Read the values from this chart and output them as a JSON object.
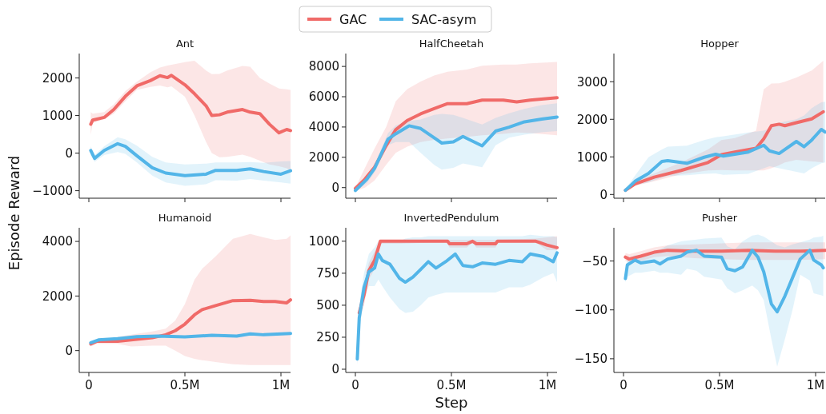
{
  "chart_data": [
    {
      "type": "line",
      "title": "Ant",
      "legend": "top",
      "tick_labels": "y",
      "xlim": [
        -50000,
        1050000
      ],
      "xticks": [
        {
          "value": 0,
          "label": null
        },
        {
          "value": 500000,
          "label": null
        },
        {
          "value": 1000000,
          "label": null
        }
      ],
      "ylim": [
        -1200,
        2650
      ],
      "yticks": [
        -1000,
        0,
        1000,
        2000
      ],
      "series": [
        {
          "name": "GAC",
          "color": "#f06a68",
          "x": [
            10000,
            20000,
            80000,
            130000,
            190000,
            250000,
            320000,
            370000,
            410000,
            430000,
            500000,
            550000,
            610000,
            640000,
            680000,
            720000,
            800000,
            840000,
            890000,
            940000,
            990000,
            1030000,
            1050000
          ],
          "values": [
            770,
            880,
            950,
            1160,
            1510,
            1790,
            1930,
            2060,
            2010,
            2070,
            1820,
            1580,
            1260,
            1000,
            1020,
            1090,
            1160,
            1090,
            1050,
            770,
            540,
            630,
            600
          ],
          "upper": [
            1090,
            1050,
            1090,
            1300,
            1650,
            1900,
            2150,
            2280,
            2330,
            2350,
            2420,
            2460,
            2200,
            2100,
            2110,
            2200,
            2320,
            2300,
            2000,
            1850,
            1720,
            1700,
            1680
          ],
          "lower": [
            490,
            800,
            900,
            1050,
            1380,
            1680,
            1760,
            1800,
            1750,
            1780,
            1500,
            1000,
            300,
            0,
            -110,
            -100,
            -40,
            -100,
            -200,
            -300,
            -350,
            -400,
            -460
          ]
        },
        {
          "name": "SAC-asym",
          "color": "#52b5e8",
          "x": [
            10000,
            30000,
            80000,
            150000,
            190000,
            250000,
            330000,
            400000,
            500000,
            610000,
            660000,
            770000,
            840000,
            910000,
            1000000,
            1050000
          ],
          "values": [
            70,
            -140,
            70,
            250,
            180,
            -70,
            -390,
            -530,
            -600,
            -560,
            -460,
            -460,
            -420,
            -490,
            -560,
            -470
          ],
          "upper": [
            180,
            -50,
            180,
            420,
            370,
            200,
            -100,
            -250,
            -300,
            -280,
            -250,
            -250,
            -240,
            -260,
            -220,
            -210
          ],
          "lower": [
            -50,
            -230,
            -50,
            30,
            -20,
            -250,
            -600,
            -780,
            -870,
            -830,
            -720,
            -730,
            -690,
            -730,
            -780,
            -810
          ]
        }
      ]
    },
    {
      "type": "line",
      "title": "HalfCheetah",
      "tick_labels": "y",
      "xlim": [
        -50000,
        1050000
      ],
      "xticks": [
        {
          "value": 0,
          "label": null
        },
        {
          "value": 500000,
          "label": null
        },
        {
          "value": 1000000,
          "label": null
        }
      ],
      "ylim": [
        -700,
        8850
      ],
      "yticks": [
        0,
        2000,
        4000,
        6000,
        8000
      ],
      "series": [
        {
          "color": "#f06a68",
          "x": [
            0,
            50000,
            100000,
            160000,
            210000,
            270000,
            340000,
            410000,
            480000,
            580000,
            660000,
            770000,
            840000,
            910000,
            1050000
          ],
          "values": [
            -50,
            560,
            1350,
            2760,
            3820,
            4430,
            4870,
            5220,
            5540,
            5540,
            5780,
            5780,
            5660,
            5780,
            5930
          ],
          "upper": [
            0,
            1300,
            2580,
            4000,
            5700,
            6500,
            7000,
            7400,
            7650,
            7800,
            8050,
            8120,
            8120,
            8200,
            8300
          ],
          "lower": [
            -230,
            0,
            470,
            1500,
            2300,
            2700,
            3000,
            3150,
            3250,
            3350,
            3460,
            3550,
            3640,
            3600,
            3460
          ]
        },
        {
          "color": "#52b5e8",
          "x": [
            0,
            60000,
            100000,
            170000,
            210000,
            280000,
            340000,
            410000,
            450000,
            510000,
            560000,
            660000,
            730000,
            800000,
            880000,
            970000,
            1050000
          ],
          "values": [
            -190,
            560,
            1270,
            3200,
            3550,
            4080,
            3900,
            3290,
            2940,
            3020,
            3380,
            2760,
            3730,
            3990,
            4340,
            4520,
            4660
          ],
          "upper": [
            -50,
            800,
            1500,
            3600,
            4100,
            4400,
            4500,
            4800,
            4870,
            4800,
            4600,
            4170,
            4600,
            4900,
            5200,
            5450,
            5570
          ],
          "lower": [
            -300,
            300,
            1000,
            2800,
            3000,
            3000,
            2300,
            1500,
            1180,
            1300,
            1600,
            1350,
            2800,
            3300,
            3500,
            3650,
            3730
          ]
        }
      ]
    },
    {
      "type": "line",
      "title": "Hopper",
      "tick_labels": "y",
      "xlim": [
        -50000,
        1050000
      ],
      "xticks": [
        {
          "value": 0,
          "label": null
        },
        {
          "value": 500000,
          "label": null
        },
        {
          "value": 1000000,
          "label": null
        }
      ],
      "ylim": [
        -100,
        3750
      ],
      "yticks": [
        0,
        1000,
        2000,
        3000
      ],
      "series": [
        {
          "color": "#f06a68",
          "x": [
            10000,
            60000,
            160000,
            300000,
            440000,
            510000,
            580000,
            690000,
            730000,
            770000,
            810000,
            840000,
            900000,
            980000,
            1040000
          ],
          "values": [
            110,
            280,
            460,
            640,
            850,
            1060,
            1130,
            1230,
            1480,
            1830,
            1870,
            1830,
            1910,
            2010,
            2200
          ],
          "upper": [
            140,
            350,
            560,
            850,
            1200,
            1450,
            1500,
            1700,
            2800,
            2950,
            2960,
            3000,
            3110,
            3300,
            3560
          ],
          "lower": [
            70,
            230,
            350,
            540,
            640,
            650,
            640,
            640,
            640,
            700,
            780,
            850,
            920,
            880,
            850
          ]
        },
        {
          "color": "#52b5e8",
          "x": [
            10000,
            60000,
            130000,
            200000,
            230000,
            330000,
            420000,
            480000,
            520000,
            650000,
            730000,
            760000,
            810000,
            900000,
            940000,
            980000,
            1030000,
            1050000
          ],
          "values": [
            110,
            350,
            560,
            880,
            900,
            830,
            990,
            1070,
            1020,
            1130,
            1310,
            1160,
            1090,
            1410,
            1270,
            1450,
            1730,
            1660
          ],
          "upper": [
            140,
            500,
            990,
            1200,
            1270,
            1300,
            1450,
            1520,
            1550,
            1650,
            1700,
            1750,
            1910,
            2000,
            2100,
            2300,
            2450,
            2470
          ],
          "lower": [
            70,
            250,
            320,
            450,
            490,
            510,
            550,
            560,
            520,
            550,
            700,
            750,
            700,
            600,
            560,
            700,
            830,
            850
          ]
        }
      ]
    },
    {
      "type": "line",
      "title": "Humanoid",
      "ylabel": "Episode Reward",
      "xlim": [
        -50000,
        1050000
      ],
      "xticks": [
        {
          "value": 0,
          "label": "0"
        },
        {
          "value": 500000,
          "label": "0.5M"
        },
        {
          "value": 1000000,
          "label": "1M"
        }
      ],
      "ylim": [
        -800,
        4500
      ],
      "yticks": [
        0,
        2000,
        4000
      ],
      "series": [
        {
          "color": "#f06a68",
          "x": [
            10000,
            40000,
            150000,
            220000,
            330000,
            400000,
            450000,
            500000,
            550000,
            590000,
            660000,
            750000,
            840000,
            910000,
            970000,
            1030000,
            1050000
          ],
          "values": [
            240,
            340,
            340,
            390,
            470,
            580,
            730,
            970,
            1310,
            1500,
            1650,
            1830,
            1840,
            1800,
            1800,
            1750,
            1860
          ],
          "upper": [
            340,
            380,
            500,
            580,
            700,
            800,
            1100,
            1700,
            2600,
            3000,
            3450,
            4100,
            4270,
            4150,
            4050,
            4100,
            4220
          ],
          "lower": [
            150,
            250,
            250,
            150,
            180,
            180,
            0,
            -200,
            -300,
            -350,
            -420,
            -500,
            -530,
            -530,
            -530,
            -530,
            -530
          ]
        },
        {
          "color": "#52b5e8",
          "x": [
            10000,
            50000,
            150000,
            250000,
            360000,
            500000,
            640000,
            770000,
            840000,
            910000,
            1050000
          ],
          "values": [
            290,
            390,
            440,
            510,
            530,
            500,
            560,
            530,
            610,
            580,
            630
          ]
        }
      ]
    },
    {
      "type": "line",
      "title": "InvertedPendulum",
      "xlabel": "Step",
      "xlim": [
        -50000,
        1050000
      ],
      "xticks": [
        {
          "value": 0,
          "label": "0"
        },
        {
          "value": 500000,
          "label": "0.5M"
        },
        {
          "value": 1000000,
          "label": "1M"
        }
      ],
      "ylim": [
        -25,
        1105
      ],
      "yticks": [
        0,
        250,
        500,
        750,
        1000
      ],
      "series": [
        {
          "color": "#f06a68",
          "x": [
            10000,
            20000,
            45000,
            70000,
            100000,
            130000,
            240000,
            380000,
            480000,
            490000,
            580000,
            610000,
            630000,
            730000,
            740000,
            940000,
            997000,
            1050000
          ],
          "values": [
            null,
            440,
            580,
            770,
            850,
            1000,
            1000,
            1000,
            1000,
            980,
            980,
            1000,
            980,
            980,
            1000,
            1000,
            970,
            950
          ],
          "upper": [
            120,
            500,
            650,
            830,
            920,
            1010,
            1010,
            1010,
            1010,
            1010,
            1010,
            1010,
            1010,
            1010,
            1010,
            1020,
            1030,
            1040
          ],
          "lower": [
            40,
            380,
            500,
            700,
            780,
            980,
            980,
            990,
            990,
            950,
            950,
            990,
            950,
            950,
            990,
            990,
            930,
            930
          ]
        },
        {
          "color": "#52b5e8",
          "x": [
            10000,
            20000,
            45000,
            70000,
            100000,
            120000,
            140000,
            180000,
            230000,
            260000,
            300000,
            340000,
            380000,
            420000,
            470000,
            520000,
            560000,
            610000,
            660000,
            730000,
            800000,
            870000,
            910000,
            980000,
            1030000,
            1050000
          ],
          "values": [
            80,
            400,
            640,
            760,
            790,
            900,
            850,
            820,
            710,
            680,
            720,
            780,
            840,
            790,
            840,
            900,
            810,
            800,
            830,
            820,
            850,
            840,
            900,
            880,
            840,
            910
          ],
          "upper": [
            120,
            500,
            750,
            900,
            950,
            1000,
            1000,
            1000,
            1000,
            1020,
            1030,
            1030,
            1040,
            1040,
            1040,
            1040,
            1040,
            1040,
            1040,
            1040,
            1040,
            1040,
            1050,
            1040,
            1040,
            1030
          ],
          "lower": [
            30,
            300,
            550,
            650,
            650,
            700,
            650,
            560,
            470,
            440,
            450,
            500,
            560,
            580,
            600,
            600,
            600,
            600,
            600,
            600,
            640,
            640,
            660,
            720,
            750,
            680
          ]
        }
      ]
    },
    {
      "type": "line",
      "title": "Pusher",
      "xlim": [
        -50000,
        1050000
      ],
      "xticks": [
        {
          "value": 0,
          "label": "0"
        },
        {
          "value": 500000,
          "label": "0.5M"
        },
        {
          "value": 1000000,
          "label": "1M"
        }
      ],
      "ylim": [
        -164,
        -16
      ],
      "yticks": [
        -150,
        -100,
        -50
      ],
      "series": [
        {
          "color": "#f06a68",
          "x": [
            10000,
            30000,
            90000,
            160000,
            230000,
            370000,
            510000,
            650000,
            790000,
            920000,
            1050000
          ],
          "values": [
            -46,
            -48,
            -45,
            -41,
            -39,
            -40,
            -40,
            -39,
            -40,
            -40,
            -39
          ],
          "upper": [
            -42,
            -43,
            -40,
            -36,
            -34,
            -33,
            -32,
            -31,
            -31,
            -31,
            -31
          ],
          "lower": [
            -50,
            -51,
            -50,
            -46,
            -45,
            -47,
            -48,
            -49,
            -49,
            -49,
            -48
          ]
        },
        {
          "color": "#52b5e8",
          "x": [
            10000,
            20000,
            60000,
            90000,
            160000,
            190000,
            230000,
            300000,
            330000,
            380000,
            420000,
            510000,
            540000,
            580000,
            620000,
            670000,
            700000,
            730000,
            770000,
            800000,
            840000,
            880000,
            920000,
            970000,
            990000,
            1030000,
            1040000
          ],
          "values": [
            -68,
            -54,
            -49,
            -52,
            -50,
            -53,
            -48,
            -45,
            -41,
            -39,
            -45,
            -46,
            -58,
            -60,
            -56,
            -39,
            -46,
            -61,
            -94,
            -102,
            -86,
            -67,
            -48,
            -39,
            -49,
            -54,
            -57
          ],
          "upper": [
            -60,
            -48,
            -44,
            -44,
            -40,
            -38,
            -34,
            -30,
            -29,
            -28,
            -27,
            -26,
            -35,
            -38,
            -30,
            -24,
            -23,
            -25,
            -30,
            -34,
            -36,
            -33,
            -31,
            -28,
            -26,
            -25,
            -24
          ],
          "lower": [
            -72,
            -66,
            -62,
            -62,
            -60,
            -62,
            -62,
            -64,
            -58,
            -60,
            -66,
            -69,
            -78,
            -83,
            -80,
            -75,
            -80,
            -90,
            -130,
            -158,
            -130,
            -100,
            -64,
            -70,
            -83,
            -85,
            -86
          ]
        }
      ]
    }
  ]
}
